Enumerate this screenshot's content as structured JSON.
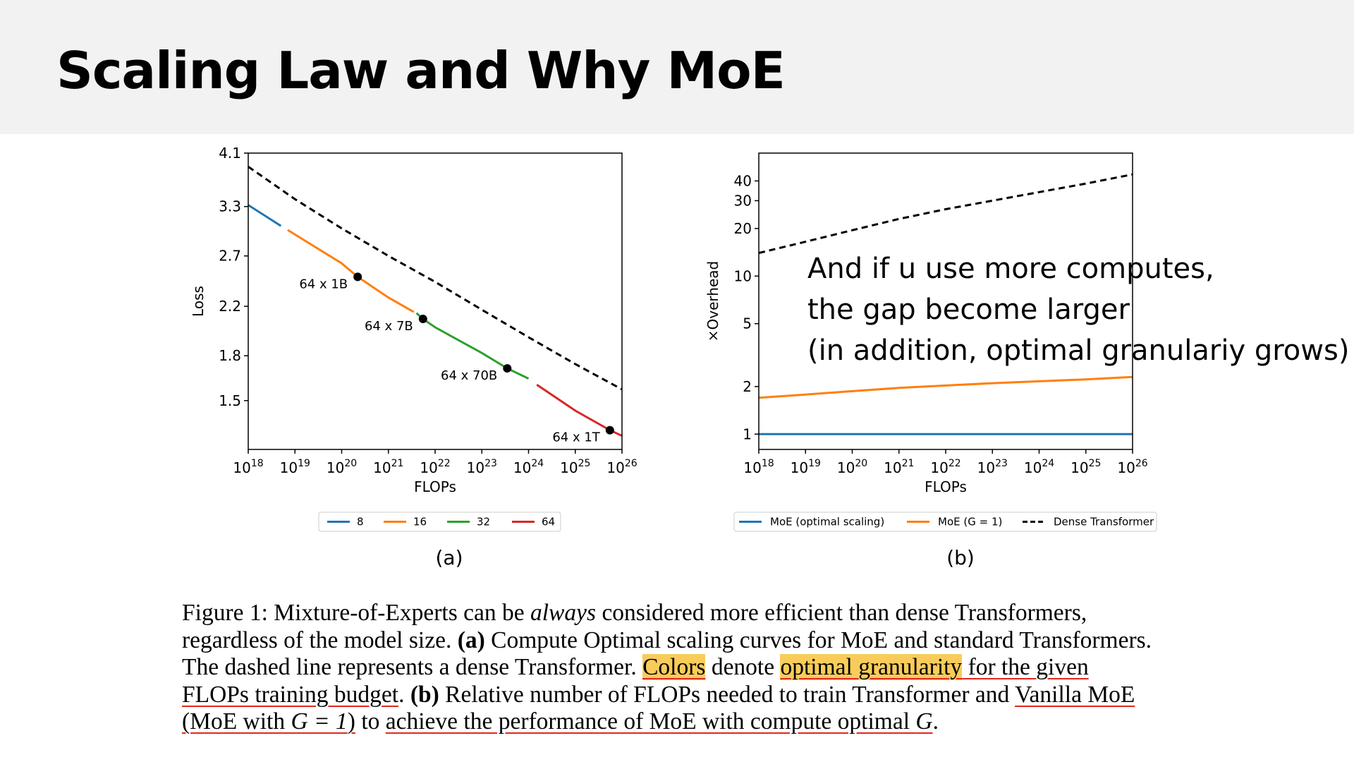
{
  "slide": {
    "title": "Scaling Law and Why MoE"
  },
  "note": {
    "lines": [
      "And if u use more computes,",
      "the gap become larger",
      "(in addition, optimal granulariy grows)"
    ]
  },
  "caption": {
    "figure_label": "Figure 1:",
    "s1a": " Mixture-of-Experts can be ",
    "s1_em": "always",
    "s1b": " considered more efficient than dense Transformers,",
    "s2a": "regardless of the model size. ",
    "s2_bold": "(a)",
    "s2b": " Compute Optimal scaling curves for MoE and standard Transformers.",
    "s3a": "The dashed line represents a dense Transformer. ",
    "s3_hl1": "Colors",
    "s3b": " denote ",
    "s3_hl2": "optimal granularity",
    "s3c": " for the given",
    "s4a": "FLOPs training budget",
    "s4b": ". ",
    "s4_bold": "(b)",
    "s4c": " Relative number of FLOPs needed to train Transformer and ",
    "s4d": "Vanilla MoE",
    "s5a": "(MoE with ",
    "s5_math": "G = 1",
    "s5b": ")",
    "s5c": " to ",
    "s5d": "achieve the performance of MoE with compute optimal ",
    "s5_g": "G",
    "s5e": "."
  },
  "chart_data": [
    {
      "type": "line",
      "panel_label": "(a)",
      "xlabel": "FLOPs",
      "ylabel": "Loss",
      "xscale": "log",
      "yscale": "log",
      "xlim": [
        1e+18,
        1e+26
      ],
      "ylim": [
        1.23,
        4.1
      ],
      "x_tick_exponents": [
        18,
        19,
        20,
        21,
        22,
        23,
        24,
        25,
        26
      ],
      "x_tick_base": "10",
      "y_ticks": [
        1.5,
        1.8,
        2.2,
        2.7,
        3.3,
        4.1
      ],
      "y_tick_labels": [
        "1.5",
        "1.8",
        "2.2",
        "2.7",
        "3.3",
        "4.1"
      ],
      "grid": false,
      "legend": {
        "placement": "below",
        "entries": [
          "8",
          "16",
          "32",
          "64"
        ]
      },
      "series": [
        {
          "name": "8",
          "color": "#1f77b4",
          "style": "solid",
          "points": [
            [
              1e+18,
              3.32
            ],
            [
              5e+18,
              3.05
            ]
          ]
        },
        {
          "name": "16",
          "color": "#ff7f0e",
          "style": "solid",
          "points": [
            [
              7e+18,
              3.0
            ],
            [
              1e+20,
              2.62
            ],
            [
              2.2e+20,
              2.48
            ],
            [
              1e+21,
              2.28
            ],
            [
              3.5e+21,
              2.15
            ]
          ]
        },
        {
          "name": "32",
          "color": "#2ca02c",
          "style": "solid",
          "points": [
            [
              4e+21,
              2.14
            ],
            [
              5.5e+21,
              2.09
            ],
            [
              1e+22,
              2.02
            ],
            [
              1e+23,
              1.82
            ],
            [
              3.5e+23,
              1.71
            ],
            [
              1e+24,
              1.64
            ]
          ]
        },
        {
          "name": "64",
          "color": "#d62728",
          "style": "solid",
          "points": [
            [
              1.5e+24,
              1.6
            ],
            [
              1e+25,
              1.44
            ],
            [
              5.5e+25,
              1.33
            ],
            [
              1e+26,
              1.3
            ]
          ]
        },
        {
          "name": "",
          "color": "#000000",
          "style": "dashed",
          "points": [
            [
              1e+18,
              3.88
            ],
            [
              1e+19,
              3.4
            ],
            [
              1e+20,
              3.02
            ],
            [
              1e+21,
              2.7
            ],
            [
              1e+22,
              2.43
            ],
            [
              1e+23,
              2.17
            ],
            [
              1e+24,
              1.94
            ],
            [
              1e+25,
              1.74
            ],
            [
              1e+26,
              1.57
            ]
          ]
        }
      ],
      "markers": [
        {
          "x": 2.2e+20,
          "y": 2.48,
          "label": "64 x 1B"
        },
        {
          "x": 5.5e+21,
          "y": 2.09,
          "label": "64 x 7B"
        },
        {
          "x": 3.5e+23,
          "y": 1.71,
          "label": "64 x 70B"
        },
        {
          "x": 5.5e+25,
          "y": 1.33,
          "label": "64 x 1T"
        }
      ]
    },
    {
      "type": "line",
      "panel_label": "(b)",
      "xlabel": "FLOPs",
      "ylabel": "×Overhead",
      "xscale": "log",
      "yscale": "log",
      "xlim": [
        1e+18,
        1e+26
      ],
      "ylim": [
        0.8,
        60
      ],
      "x_tick_exponents": [
        18,
        19,
        20,
        21,
        22,
        23,
        24,
        25,
        26
      ],
      "x_tick_base": "10",
      "y_ticks": [
        1,
        2,
        5,
        10,
        20,
        30,
        40
      ],
      "y_tick_labels": [
        "1",
        "2",
        "5",
        "10",
        "20",
        "30",
        "40"
      ],
      "grid": false,
      "legend": {
        "placement": "below",
        "entries": [
          "MoE (optimal scaling)",
          "MoE (G = 1)",
          "Dense Transformer"
        ]
      },
      "series": [
        {
          "name": "MoE (optimal scaling)",
          "color": "#1f77b4",
          "style": "solid",
          "points": [
            [
              1e+18,
              1.0
            ],
            [
              1e+26,
              1.0
            ]
          ]
        },
        {
          "name": "MoE (G = 1)",
          "color": "#ff7f0e",
          "style": "solid",
          "points": [
            [
              1e+18,
              1.7
            ],
            [
              1e+19,
              1.78
            ],
            [
              1e+20,
              1.87
            ],
            [
              1e+21,
              1.96
            ],
            [
              1e+22,
              2.03
            ],
            [
              1e+23,
              2.1
            ],
            [
              1e+24,
              2.16
            ],
            [
              1e+25,
              2.22
            ],
            [
              1e+26,
              2.3
            ]
          ]
        },
        {
          "name": "Dense Transformer",
          "color": "#000000",
          "style": "dashed",
          "points": [
            [
              1e+18,
              14
            ],
            [
              1e+19,
              16.5
            ],
            [
              1e+20,
              19.5
            ],
            [
              1e+21,
              23
            ],
            [
              1e+22,
              26.5
            ],
            [
              1e+23,
              30
            ],
            [
              1e+24,
              34
            ],
            [
              1e+25,
              38.5
            ],
            [
              1e+26,
              44
            ]
          ]
        }
      ]
    }
  ]
}
